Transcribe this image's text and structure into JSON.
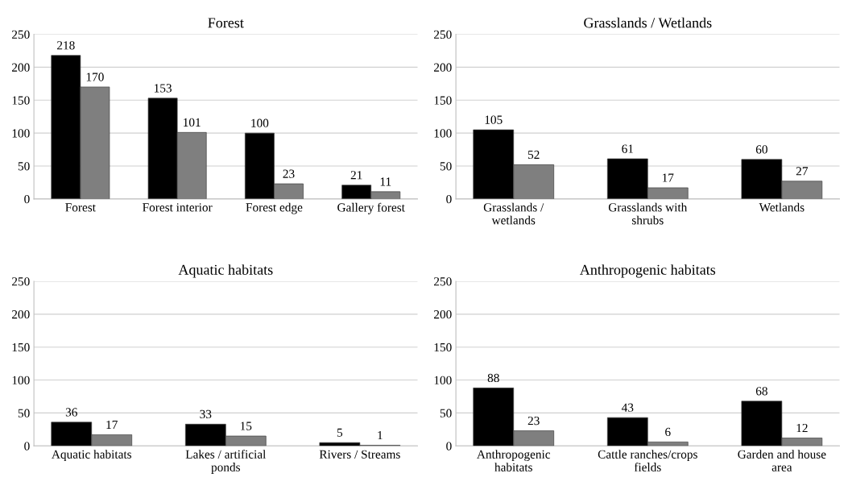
{
  "chart_data": [
    {
      "type": "bar",
      "title": "Forest",
      "categories": [
        "Forest",
        "Forest interior",
        "Forest edge",
        "Gallery forest"
      ],
      "series": [
        {
          "color": "#000000",
          "values": [
            218,
            153,
            100,
            21
          ]
        },
        {
          "color": "#7f7f7f",
          "values": [
            170,
            101,
            23,
            11
          ]
        }
      ],
      "ylim": [
        0,
        250
      ],
      "yticks": [
        0,
        50,
        100,
        150,
        200,
        250
      ],
      "grid": "y",
      "data_labels": true
    },
    {
      "type": "bar",
      "title": "Grasslands / Wetlands",
      "categories": [
        "Grasslands /\nwetlands",
        "Grasslands with\nshrubs",
        "Wetlands"
      ],
      "series": [
        {
          "color": "#000000",
          "values": [
            105,
            61,
            60
          ]
        },
        {
          "color": "#7f7f7f",
          "values": [
            52,
            17,
            27
          ]
        }
      ],
      "ylim": [
        0,
        250
      ],
      "yticks": [
        0,
        50,
        100,
        150,
        200,
        250
      ],
      "grid": "y",
      "data_labels": true
    },
    {
      "type": "bar",
      "title": "Aquatic habitats",
      "categories": [
        "Aquatic habitats",
        "Lakes / artificial\nponds",
        "Rivers / Streams"
      ],
      "series": [
        {
          "color": "#000000",
          "values": [
            36,
            33,
            5
          ]
        },
        {
          "color": "#7f7f7f",
          "values": [
            17,
            15,
            1
          ]
        }
      ],
      "ylim": [
        0,
        250
      ],
      "yticks": [
        0,
        50,
        100,
        150,
        200,
        250
      ],
      "grid": "y",
      "data_labels": true
    },
    {
      "type": "bar",
      "title": "Anthropogenic habitats",
      "categories": [
        "Anthropogenic\nhabitats",
        "Cattle ranches/crops\nfields",
        "Garden and house\narea"
      ],
      "series": [
        {
          "color": "#000000",
          "values": [
            88,
            43,
            68
          ]
        },
        {
          "color": "#7f7f7f",
          "values": [
            23,
            6,
            12
          ]
        }
      ],
      "ylim": [
        0,
        250
      ],
      "yticks": [
        0,
        50,
        100,
        150,
        200,
        250
      ],
      "grid": "y",
      "data_labels": true
    }
  ]
}
